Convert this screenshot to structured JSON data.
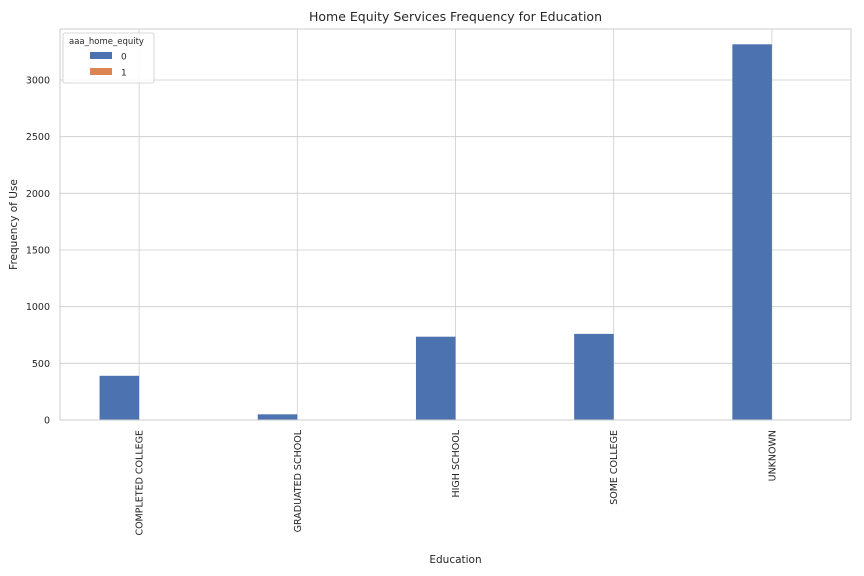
{
  "chart_data": {
    "type": "bar",
    "title": "Home Equity Services Frequency for Education",
    "xlabel": "Education",
    "ylabel": "Frequency of Use",
    "categories": [
      "COMPLETED COLLEGE",
      "GRADUATED SCHOOL",
      "HIGH SCHOOL",
      "SOME COLLEGE",
      "UNKNOWN"
    ],
    "series": [
      {
        "name": "0",
        "values": [
          390,
          50,
          735,
          760,
          3315
        ],
        "color": "#4c72b0"
      },
      {
        "name": "1",
        "values": [
          0,
          0,
          0,
          0,
          0
        ],
        "color": "#dd8452"
      }
    ],
    "legend": {
      "title": "aaa_home_equity",
      "placement": "top-left"
    },
    "ylim": [
      0,
      3450
    ],
    "yticks": [
      0,
      500,
      1000,
      1500,
      2000,
      2500,
      3000
    ],
    "grid": true
  }
}
